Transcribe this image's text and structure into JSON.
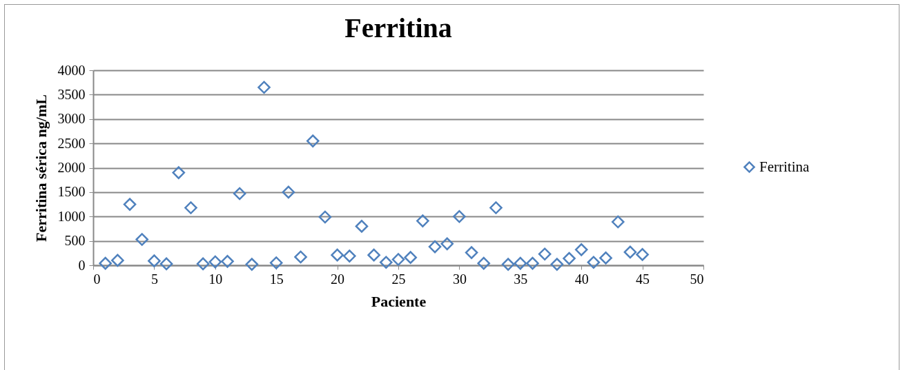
{
  "chart_data": {
    "type": "scatter",
    "title": "Ferritina",
    "xlabel": "Paciente",
    "ylabel": "Ferritina sérica ng/mL",
    "x": [
      1,
      2,
      3,
      4,
      5,
      6,
      7,
      8,
      9,
      10,
      11,
      12,
      13,
      14,
      15,
      16,
      17,
      18,
      19,
      20,
      21,
      22,
      23,
      24,
      25,
      26,
      27,
      28,
      29,
      30,
      31,
      32,
      33,
      34,
      35,
      36,
      37,
      38,
      39,
      40,
      41,
      42,
      43,
      44,
      45
    ],
    "series": [
      {
        "name": "Ferritina",
        "color": "#4f81bd",
        "values": [
          40,
          100,
          1250,
          530,
          90,
          30,
          1900,
          1180,
          30,
          70,
          80,
          1470,
          20,
          3650,
          50,
          1500,
          170,
          2550,
          990,
          210,
          190,
          800,
          210,
          60,
          120,
          160,
          910,
          380,
          440,
          1000,
          260,
          40,
          1180,
          20,
          40,
          40,
          230,
          20,
          140,
          320,
          60,
          150,
          890,
          270,
          220
        ]
      }
    ],
    "xlim": [
      0,
      50
    ],
    "xticks": [
      0,
      5,
      10,
      15,
      20,
      25,
      30,
      35,
      40,
      45,
      50
    ],
    "ylim": [
      0,
      4000
    ],
    "yticks": [
      0,
      500,
      1000,
      1500,
      2000,
      2500,
      3000,
      3500,
      4000
    ],
    "grid": "y",
    "legend": "right",
    "marker": "diamond"
  }
}
